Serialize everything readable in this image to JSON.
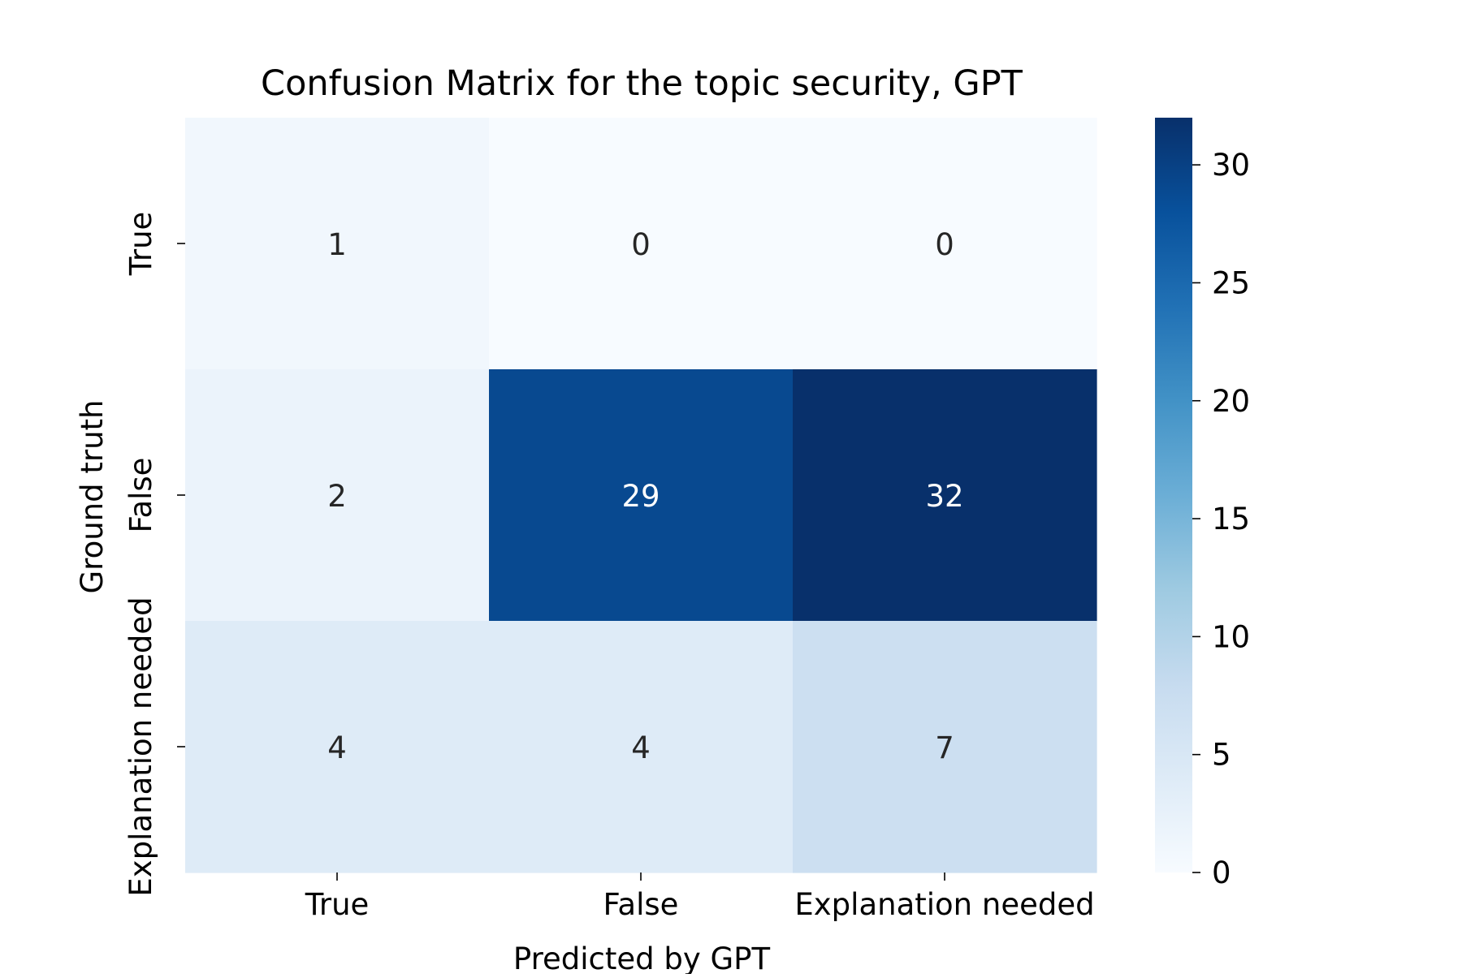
{
  "chart_data": {
    "type": "heatmap",
    "title": "Confusion Matrix for the topic security, GPT",
    "xlabel": "Predicted by GPT",
    "ylabel": "Ground truth",
    "x_categories": [
      "True",
      "False",
      "Explanation needed"
    ],
    "y_categories": [
      "True",
      "False",
      "Explanation needed"
    ],
    "values": [
      [
        1,
        0,
        0
      ],
      [
        2,
        29,
        32
      ],
      [
        4,
        4,
        7
      ]
    ],
    "colorbar": {
      "range": [
        0,
        32
      ],
      "ticks": [
        0,
        5,
        10,
        15,
        20,
        25,
        30
      ]
    },
    "colormap": "Blues",
    "colormap_stops": [
      "#f7fbff",
      "#deebf7",
      "#c6dbef",
      "#9ecae1",
      "#6baed6",
      "#4292c6",
      "#2171b5",
      "#08519c",
      "#08306b"
    ]
  }
}
